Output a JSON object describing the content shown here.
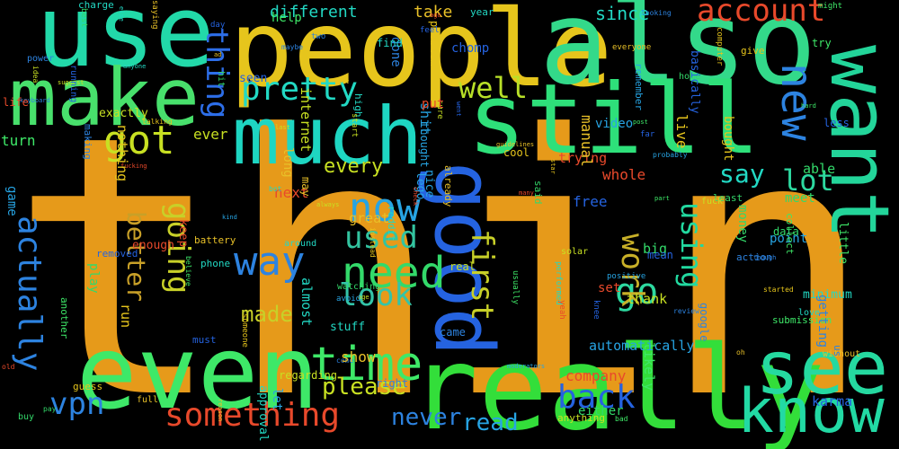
{
  "background": "#000000",
  "words": [
    {
      "text": "think",
      "color": "#e69a1a",
      "icon": "word"
    },
    {
      "text": "people",
      "color": "#e6c51c"
    },
    {
      "text": "also",
      "color": "#33d98a"
    },
    {
      "text": "use",
      "color": "#22d9a9"
    },
    {
      "text": "make",
      "color": "#48e06c"
    },
    {
      "text": "much",
      "color": "#1ed6c2"
    },
    {
      "text": "still",
      "color": "#2ee07a"
    },
    {
      "text": "want",
      "color": "#23d59a"
    },
    {
      "text": "even",
      "color": "#3ee868"
    },
    {
      "text": "really",
      "color": "#33de3a"
    },
    {
      "text": "see",
      "color": "#25d9a0"
    },
    {
      "text": "know",
      "color": "#22d9a4"
    },
    {
      "text": "good",
      "color": "#2563e0"
    },
    {
      "text": "account",
      "color": "#e8492b"
    },
    {
      "text": "new",
      "color": "#2d83e0"
    },
    {
      "text": "got",
      "color": "#c8e022"
    },
    {
      "text": "pretty",
      "color": "#22d9c4"
    },
    {
      "text": "well",
      "color": "#b8e028"
    },
    {
      "text": "thing",
      "color": "#2d6ee8"
    },
    {
      "text": "time",
      "color": "#3ee868"
    },
    {
      "text": "now",
      "color": "#27a4e3"
    },
    {
      "text": "need",
      "color": "#33d96a"
    },
    {
      "text": "going",
      "color": "#c8d028"
    },
    {
      "text": "way",
      "color": "#2d83e0"
    },
    {
      "text": "used",
      "color": "#33c4a0"
    },
    {
      "text": "look",
      "color": "#33c4a8"
    },
    {
      "text": "something",
      "color": "#e8492b"
    },
    {
      "text": "back",
      "color": "#2563e0"
    },
    {
      "text": "vpn",
      "color": "#2d83e0"
    },
    {
      "text": "actually",
      "color": "#2d83e0"
    },
    {
      "text": "first",
      "color": "#c8d028"
    },
    {
      "text": "go",
      "color": "#2dd9a0"
    },
    {
      "text": "work",
      "color": "#c8b028"
    },
    {
      "text": "lot",
      "color": "#2dd9a0"
    },
    {
      "text": "say",
      "color": "#22d9c4"
    },
    {
      "text": "using",
      "color": "#22d9a0"
    },
    {
      "text": "better",
      "color": "#c8a028"
    },
    {
      "text": "please",
      "color": "#c8e022"
    },
    {
      "text": "never",
      "color": "#2d83e0"
    },
    {
      "text": "read",
      "color": "#27a4e3"
    },
    {
      "text": "every",
      "color": "#c8e022"
    },
    {
      "text": "made",
      "color": "#c8d028"
    },
    {
      "text": "since",
      "color": "#22d9c4"
    },
    {
      "text": "different",
      "color": "#22d9c4"
    },
    {
      "text": "take",
      "color": "#e8c028"
    }
  ],
  "small_words": [
    "reddit",
    "though",
    "sure",
    "enough",
    "pay",
    "instead",
    "seen",
    "battery",
    "probably",
    "hard",
    "phone",
    "done",
    "age",
    "next",
    "least",
    "someone",
    "karma",
    "long",
    "avoid",
    "might",
    "find",
    "action",
    "idea",
    "set",
    "best",
    "problem",
    "feel",
    "saying",
    "lego",
    "part",
    "love",
    "two",
    "suggest",
    "many",
    "data",
    "started",
    "free",
    "great",
    "point",
    "little",
    "stuff",
    "right",
    "always",
    "keep",
    "buy",
    "bit",
    "far",
    "may",
    "shit",
    "another",
    "high",
    "power",
    "internet",
    "put",
    "able",
    "run",
    "less",
    "full",
    "video",
    "bad",
    "around",
    "come",
    "real",
    "fucking",
    "meet",
    "guess",
    "day",
    "without",
    "thought",
    "usually",
    "charge",
    "making",
    "anything",
    "old",
    "big",
    "star",
    "knee",
    "ad",
    "kind",
    "try",
    "anyone",
    "maybe",
    "fuck",
    "trying",
    "said",
    "give",
    "must",
    "everyone",
    "game",
    "help",
    "year",
    "us",
    "ever",
    "company",
    "home",
    "cool",
    "went",
    "reason",
    "positive",
    "likely",
    "approval",
    "keyboard",
    "exactly",
    "ago",
    "either",
    "nothing",
    "mean",
    "manual",
    "let",
    "turn",
    "almost",
    "google",
    "thank",
    "check",
    "hit",
    "talking",
    "running",
    "guidelines",
    "moderators",
    "collect",
    "performed",
    "review",
    "solar",
    "whole",
    "play",
    "live",
    "basically",
    "oh",
    "remember",
    "believe",
    "bot",
    "came",
    "start",
    "life",
    "watching",
    "computer",
    "removed",
    "already",
    "automatically",
    "post",
    "minimum",
    "looking",
    "regarding",
    "yeah",
    "money",
    "bought",
    "chomp",
    "show",
    "nice",
    "submission",
    "else",
    "getting",
    "last"
  ]
}
